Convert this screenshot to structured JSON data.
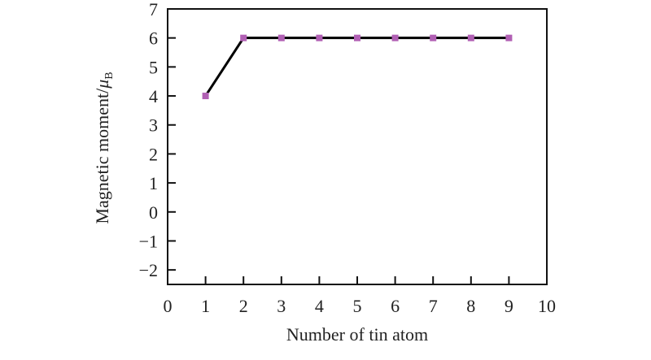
{
  "chart_data": {
    "type": "line",
    "title": "",
    "xlabel": "Number of tin atom",
    "ylabel_main": "Magnetic moment/",
    "ylabel_mu": "μ",
    "ylabel_sub": "B",
    "xlim": [
      0,
      10
    ],
    "ylim": [
      -2.5,
      7
    ],
    "xticks": [
      0,
      1,
      2,
      3,
      4,
      5,
      6,
      7,
      8,
      9,
      10
    ],
    "yticks": [
      -2,
      -1,
      0,
      1,
      2,
      3,
      4,
      5,
      6,
      7
    ],
    "xtick_labels": [
      "0",
      "1",
      "2",
      "3",
      "4",
      "5",
      "6",
      "7",
      "8",
      "9",
      "10"
    ],
    "ytick_labels": [
      "−2",
      "−1",
      "0",
      "1",
      "2",
      "3",
      "4",
      "5",
      "6",
      "7"
    ],
    "grid": false,
    "series": [
      {
        "x": [
          1,
          2,
          3,
          4,
          5,
          6,
          7,
          8,
          9
        ],
        "y": [
          4,
          6,
          6,
          6,
          6,
          6,
          6,
          6,
          6
        ],
        "line_color": "#000000",
        "marker": "square",
        "marker_color": "#b160b4"
      }
    ]
  }
}
